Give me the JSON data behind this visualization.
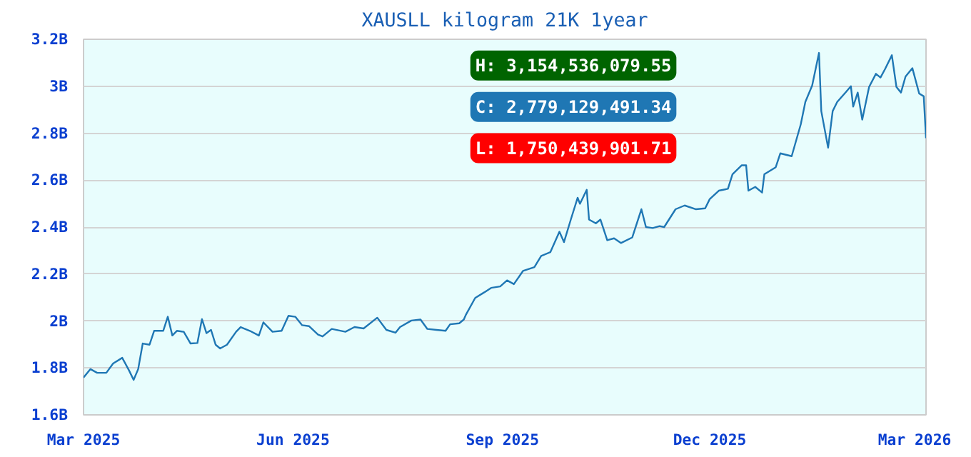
{
  "chart_data": {
    "type": "line",
    "title": "XAUSLL kilogram 21K 1year",
    "x": [
      "2025-03-01",
      "2025-03-04",
      "2025-03-07",
      "2025-03-11",
      "2025-03-14",
      "2025-03-18",
      "2025-03-21",
      "2025-03-23",
      "2025-03-25",
      "2025-03-27",
      "2025-03-30",
      "2025-04-01",
      "2025-04-05",
      "2025-04-07",
      "2025-04-09",
      "2025-04-11",
      "2025-04-14",
      "2025-04-17",
      "2025-04-20",
      "2025-04-22",
      "2025-04-24",
      "2025-04-26",
      "2025-04-28",
      "2025-04-30",
      "2025-05-03",
      "2025-05-07",
      "2025-05-09",
      "2025-05-13",
      "2025-05-17",
      "2025-05-19",
      "2025-05-23",
      "2025-05-27",
      "2025-05-30",
      "2025-06-02",
      "2025-06-05",
      "2025-06-08",
      "2025-06-12",
      "2025-06-14",
      "2025-06-18",
      "2025-06-24",
      "2025-06-28",
      "2025-07-02",
      "2025-07-08",
      "2025-07-12",
      "2025-07-16",
      "2025-07-18",
      "2025-07-23",
      "2025-07-27",
      "2025-07-30",
      "2025-08-03",
      "2025-08-07",
      "2025-08-09",
      "2025-08-13",
      "2025-08-15",
      "2025-08-16",
      "2025-08-20",
      "2025-08-24",
      "2025-08-27",
      "2025-08-31",
      "2025-09-03",
      "2025-09-06",
      "2025-09-10",
      "2025-09-15",
      "2025-09-18",
      "2025-09-22",
      "2025-09-26",
      "2025-09-28",
      "2025-10-01",
      "2025-10-04",
      "2025-10-05",
      "2025-10-08",
      "2025-10-09",
      "2025-10-12",
      "2025-10-14",
      "2025-10-17",
      "2025-10-20",
      "2025-10-23",
      "2025-10-28",
      "2025-11-01",
      "2025-11-03",
      "2025-11-06",
      "2025-11-09",
      "2025-11-11",
      "2025-11-16",
      "2025-11-20",
      "2025-11-25",
      "2025-11-29",
      "2025-12-01",
      "2025-12-05",
      "2025-12-09",
      "2025-12-11",
      "2025-12-15",
      "2025-12-17",
      "2025-12-18",
      "2025-12-21",
      "2025-12-24",
      "2025-12-25",
      "2025-12-30",
      "2026-01-01",
      "2026-01-06",
      "2026-01-10",
      "2026-01-12",
      "2026-01-15",
      "2026-01-18",
      "2026-01-19",
      "2026-01-22",
      "2026-01-24",
      "2026-01-26",
      "2026-01-30",
      "2026-02-01",
      "2026-02-02",
      "2026-02-04",
      "2026-02-06",
      "2026-02-09",
      "2026-02-12",
      "2026-02-14",
      "2026-02-16",
      "2026-02-19",
      "2026-02-21",
      "2026-02-23",
      "2026-02-25",
      "2026-02-28",
      "2026-03-03",
      "2026-03-05",
      "2026-03-06"
    ],
    "series": [
      {
        "color": "#1f77b4",
        "values": [
          1.759,
          1.795,
          1.779,
          1.779,
          1.819,
          1.843,
          1.789,
          1.749,
          1.795,
          1.904,
          1.899,
          1.958,
          1.958,
          2.018,
          1.938,
          1.958,
          1.954,
          1.904,
          1.906,
          2.008,
          1.948,
          1.962,
          1.899,
          1.883,
          1.899,
          1.954,
          1.974,
          1.958,
          1.938,
          1.994,
          1.954,
          1.958,
          2.022,
          2.018,
          1.982,
          1.978,
          1.942,
          1.934,
          1.966,
          1.954,
          1.974,
          1.968,
          2.014,
          1.962,
          1.95,
          1.974,
          2.002,
          2.006,
          1.966,
          1.962,
          1.958,
          1.986,
          1.99,
          2.006,
          2.028,
          2.098,
          2.122,
          2.141,
          2.147,
          2.173,
          2.157,
          2.213,
          2.229,
          2.277,
          2.293,
          2.38,
          2.336,
          2.432,
          2.525,
          2.499,
          2.559,
          2.432,
          2.416,
          2.432,
          2.344,
          2.352,
          2.332,
          2.356,
          2.476,
          2.4,
          2.396,
          2.404,
          2.4,
          2.476,
          2.492,
          2.476,
          2.48,
          2.519,
          2.555,
          2.563,
          2.625,
          2.663,
          2.663,
          2.555,
          2.571,
          2.547,
          2.625,
          2.655,
          2.714,
          2.702,
          2.838,
          2.933,
          3.003,
          3.142,
          2.894,
          2.738,
          2.894,
          2.933,
          2.977,
          3.0,
          2.913,
          2.973,
          2.858,
          2.997,
          3.053,
          3.037,
          3.073,
          3.132,
          2.997,
          2.973,
          3.041,
          3.077,
          2.969,
          2.957,
          2.779
        ]
      }
    ],
    "xlim": [
      "2025-03-01",
      "2026-03-06"
    ],
    "xticks": [
      {
        "value": "2025-03-01",
        "label": "Mar 2025"
      },
      {
        "value": "2025-06-01",
        "label": "Jun 2025"
      },
      {
        "value": "2025-09-01",
        "label": "Sep 2025"
      },
      {
        "value": "2025-12-01",
        "label": "Dec 2025"
      },
      {
        "value": "2026-03-01",
        "label": "Mar 2026"
      }
    ],
    "ylim": [
      1.6,
      3.2
    ],
    "yticks": [
      {
        "value": 1.6,
        "label": "1.6B"
      },
      {
        "value": 1.8,
        "label": "1.8B"
      },
      {
        "value": 2.0,
        "label": "2B"
      },
      {
        "value": 2.2,
        "label": "2.2B"
      },
      {
        "value": 2.4,
        "label": "2.4B"
      },
      {
        "value": 2.6,
        "label": "2.6B"
      },
      {
        "value": 2.8,
        "label": "2.8B"
      },
      {
        "value": 3.0,
        "label": "3B"
      },
      {
        "value": 3.2,
        "label": "3.2B"
      }
    ],
    "grid": "y",
    "marker": "none",
    "line_style": "solid",
    "annotations": [
      "H: 3,154,536,079.55",
      "C: 2,779,129,491.34",
      "L: 1,750,439,901.71"
    ]
  }
}
